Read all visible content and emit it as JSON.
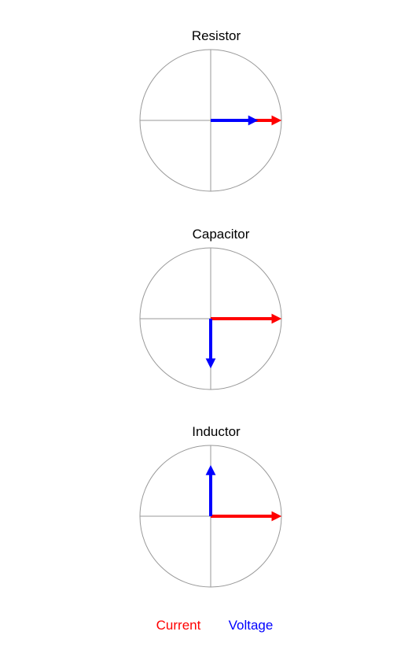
{
  "colors": {
    "current": "#ff0000",
    "voltage": "#0000ff",
    "circle": "#999999",
    "axis": "#999999",
    "background": "#ffffff"
  },
  "diagrams": [
    {
      "title": "Resistor",
      "current_phase_deg": 0,
      "current_magnitude": 1.0,
      "voltage_phase_deg": 0,
      "voltage_magnitude": 0.67
    },
    {
      "title": "Capacitor",
      "current_phase_deg": 0,
      "current_magnitude": 1.0,
      "voltage_phase_deg": -90,
      "voltage_magnitude": 0.7
    },
    {
      "title": "Inductor",
      "current_phase_deg": 0,
      "current_magnitude": 1.0,
      "voltage_phase_deg": 90,
      "voltage_magnitude": 0.72
    }
  ],
  "legend": {
    "current_label": "Current",
    "voltage_label": "Voltage"
  }
}
